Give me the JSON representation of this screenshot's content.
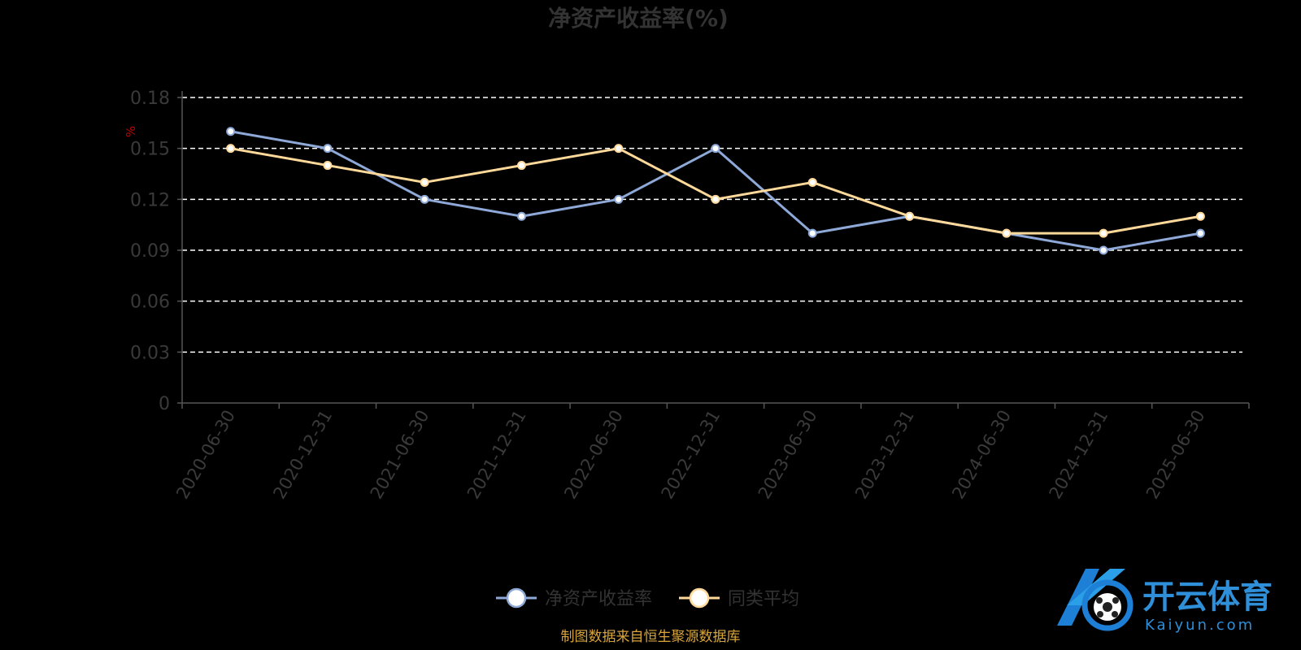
{
  "chart_data": {
    "type": "line",
    "title": "净资产收益率(%)",
    "ylabel": "%",
    "ylim": [
      0,
      0.18
    ],
    "yticks": [
      "0",
      "0.03",
      "0.06",
      "0.09",
      "0.12",
      "0.15",
      "0.18"
    ],
    "grid": true,
    "legend_position": "bottom-center",
    "categories": [
      "2020-06-30",
      "2020-12-31",
      "2021-06-30",
      "2021-12-31",
      "2022-06-30",
      "2022-12-31",
      "2023-06-30",
      "2023-12-31",
      "2024-06-30",
      "2024-12-31",
      "2025-06-30"
    ],
    "series": [
      {
        "name": "净资产收益率",
        "color": "#8ea9d8",
        "values": [
          0.16,
          0.15,
          0.12,
          0.11,
          0.12,
          0.15,
          0.1,
          0.11,
          0.1,
          0.09,
          0.1
        ]
      },
      {
        "name": "同类平均",
        "color": "#ffd99a",
        "values": [
          0.15,
          0.14,
          0.13,
          0.14,
          0.15,
          0.12,
          0.13,
          0.11,
          0.1,
          0.1,
          0.11
        ]
      }
    ]
  },
  "footer": {
    "source": "制图数据来自恒生聚源数据库"
  },
  "watermark": {
    "brand_cn": "开云体育",
    "brand_en": "Kaiyun.com",
    "logo_icon": "kaiyun-logo-icon"
  }
}
